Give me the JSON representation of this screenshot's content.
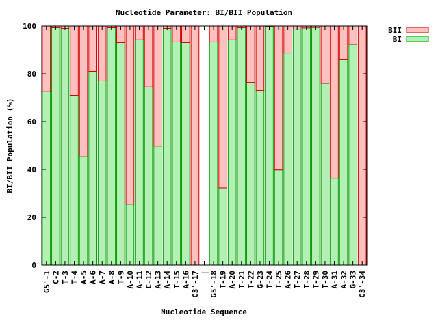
{
  "chart_data": {
    "type": "bar",
    "stacked": true,
    "title": "Nucleotide Parameter: BI/BII Population",
    "xlabel": "Nucleotide Sequence",
    "ylabel": "BI/BII Population (%)",
    "ylim": [
      0,
      100
    ],
    "yticks": [
      0,
      20,
      40,
      60,
      80,
      100
    ],
    "grid": false,
    "legend_position": "top-right, outside plot",
    "colors": {
      "BI_fill": "#b3f0b3",
      "BI_stroke": "#0a9a0a",
      "BII_fill": "#ffc0c0",
      "BII_stroke": "#d40000"
    },
    "legend": [
      {
        "name": "BII",
        "color_key": "BII"
      },
      {
        "name": "BI",
        "color_key": "BI"
      }
    ],
    "categories": [
      "G5'-1",
      "C-2",
      "T-3",
      "T-4",
      "A-5",
      "A-6",
      "A-7",
      "A-8",
      "T-9",
      "A-10",
      "A-11",
      "C-12",
      "A-13",
      "A-14",
      "T-15",
      "A-16",
      "C3'-17",
      "|",
      "G5'-18",
      "T-19",
      "A-20",
      "T-21",
      "T-22",
      "G-23",
      "T-24",
      "T-25",
      "A-26",
      "T-27",
      "T-28",
      "T-29",
      "T-30",
      "A-31",
      "A-32",
      "G-33",
      "C3'-34"
    ],
    "series": [
      {
        "name": "BI",
        "values": [
          72.5,
          99.3,
          99.0,
          71.0,
          45.5,
          81.0,
          77.0,
          99.3,
          93.0,
          25.5,
          94.2,
          74.5,
          49.8,
          99.0,
          93.3,
          93.0,
          0,
          null,
          93.3,
          32.3,
          94.2,
          99.3,
          76.4,
          73.0,
          99.8,
          39.8,
          88.7,
          98.7,
          99.2,
          99.4,
          76.0,
          36.4,
          85.9,
          92.3,
          0
        ]
      },
      {
        "name": "BII",
        "values": [
          27.5,
          0.7,
          1.0,
          29.0,
          54.5,
          19.0,
          23.0,
          0.7,
          7.0,
          74.5,
          5.8,
          25.5,
          50.2,
          1.0,
          6.7,
          7.0,
          100,
          null,
          6.7,
          67.7,
          5.8,
          0.7,
          23.6,
          27.0,
          0.2,
          60.2,
          11.3,
          1.3,
          0.8,
          0.6,
          24.0,
          63.6,
          14.1,
          7.7,
          100
        ]
      }
    ]
  }
}
